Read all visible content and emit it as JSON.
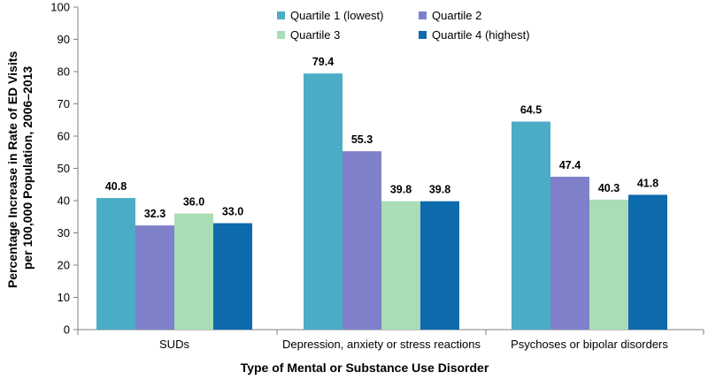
{
  "chart_data": {
    "type": "bar",
    "categories": [
      "SUDs",
      "Depression, anxiety or stress reactions",
      "Psychoses or bipolar disorders"
    ],
    "series": [
      {
        "name": "Quartile 1 (lowest)",
        "color": "#4BACC6",
        "values": [
          40.8,
          79.4,
          64.5
        ]
      },
      {
        "name": "Quartile 2",
        "color": "#7F80CA",
        "values": [
          32.3,
          55.3,
          47.4
        ]
      },
      {
        "name": "Quartile 3",
        "color": "#A8DDB5",
        "values": [
          36.0,
          39.8,
          40.3
        ]
      },
      {
        "name": "Quartile 4 (highest)",
        "color": "#0D6AAD",
        "values": [
          33.0,
          39.8,
          41.8
        ]
      }
    ],
    "data_labels": [
      [
        "40.8",
        "79.4",
        "64.5"
      ],
      [
        "32.3",
        "55.3",
        "47.4"
      ],
      [
        "36.0",
        "39.8",
        "40.3"
      ],
      [
        "33.0",
        "39.8",
        "41.8"
      ]
    ],
    "xlabel": "Type of Mental or Substance Use Disorder",
    "ylabel_lines": [
      "Percentage Increase in Rate of ED Visits",
      "per 100,000 Population, 2006–2013"
    ],
    "ylim": [
      0,
      100
    ],
    "yticks": [
      0,
      10,
      20,
      30,
      40,
      50,
      60,
      70,
      80,
      90,
      100
    ],
    "grid": false,
    "legend_position": "top-center"
  }
}
